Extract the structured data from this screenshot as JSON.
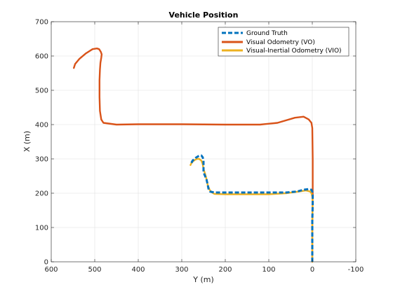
{
  "chart_data": {
    "type": "line",
    "title": "Vehicle Position",
    "xlabel": "Y (m)",
    "ylabel": "X (m)",
    "xlim": [
      600,
      -100
    ],
    "ylim": [
      0,
      700
    ],
    "x_reversed": true,
    "x_ticks": [
      600,
      500,
      400,
      300,
      200,
      100,
      0,
      -100
    ],
    "y_ticks": [
      0,
      100,
      200,
      300,
      400,
      500,
      600,
      700
    ],
    "x_tick_labels": [
      "600",
      "500",
      "400",
      "300",
      "200",
      "100",
      "0",
      "-100"
    ],
    "y_tick_labels": [
      "0",
      "100",
      "200",
      "300",
      "400",
      "500",
      "600",
      "700"
    ],
    "grid": true,
    "legend_location": "top-right",
    "series": [
      {
        "name": "Ground Truth",
        "color": "#0072BD",
        "style": "dashed",
        "x": [
          0,
          0,
          0,
          -1,
          -1,
          0,
          2,
          8,
          20,
          35,
          60,
          100,
          150,
          200,
          225,
          235,
          238,
          240,
          243,
          248,
          250,
          250,
          250,
          252,
          255,
          258,
          262,
          268,
          275,
          278
        ],
        "y": [
          0,
          60,
          120,
          170,
          195,
          205,
          210,
          212,
          210,
          205,
          202,
          202,
          202,
          202,
          202,
          205,
          210,
          222,
          240,
          255,
          265,
          280,
          295,
          305,
          310,
          310,
          308,
          303,
          295,
          288
        ]
      },
      {
        "name": "Visual Odometry (VO)",
        "color": "#D95319",
        "style": "solid",
        "x": [
          0,
          0,
          -1,
          -1,
          0,
          2,
          8,
          20,
          40,
          80,
          120,
          200,
          300,
          400,
          450,
          480,
          485,
          488,
          489,
          489,
          488,
          487,
          485,
          484,
          486,
          490,
          495,
          505,
          520,
          535,
          545,
          548
        ],
        "y": [
          0,
          100,
          200,
          300,
          390,
          405,
          415,
          423,
          420,
          405,
          400,
          400,
          401,
          401,
          400,
          405,
          415,
          440,
          480,
          530,
          560,
          580,
          595,
          605,
          612,
          620,
          622,
          620,
          608,
          592,
          577,
          565
        ]
      },
      {
        "name": "Visual-Inertial Odometry (VIO)",
        "color": "#EDB120",
        "style": "solid",
        "x": [
          0,
          0,
          0,
          -1,
          0,
          2,
          5,
          15,
          30,
          60,
          100,
          150,
          200,
          225,
          232,
          236,
          240,
          243,
          246,
          248,
          250,
          252,
          255,
          260,
          265,
          270,
          275,
          278,
          280
        ],
        "y": [
          0,
          60,
          120,
          170,
          190,
          200,
          205,
          208,
          205,
          200,
          197,
          197,
          197,
          198,
          203,
          210,
          222,
          240,
          255,
          263,
          270,
          285,
          295,
          300,
          300,
          297,
          292,
          287,
          282
        ]
      }
    ]
  }
}
